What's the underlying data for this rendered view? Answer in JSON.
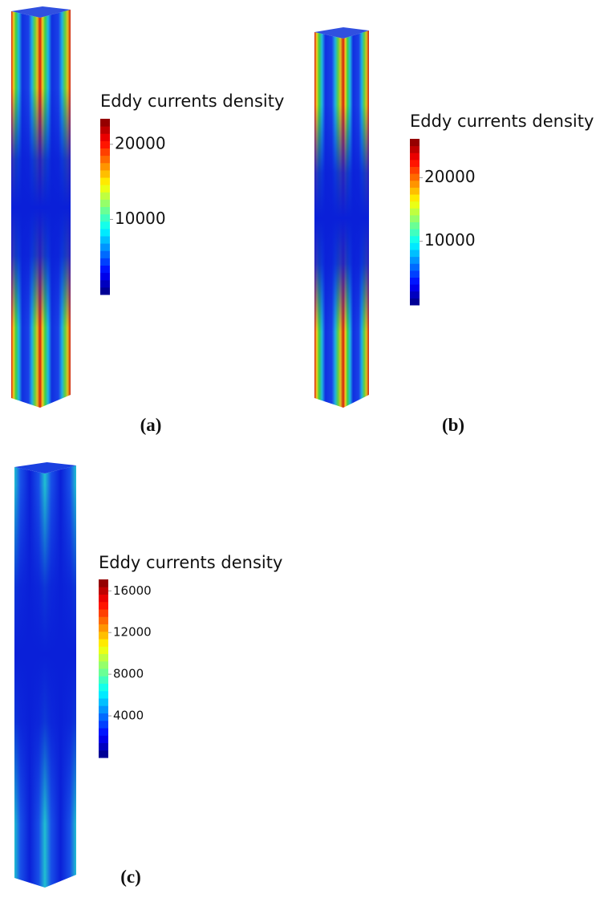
{
  "panels": [
    {
      "label": "(a)",
      "legend": {
        "title": "Eddy currents density",
        "range": [
          0,
          23400
        ],
        "ticks": [
          10000,
          20000
        ]
      }
    },
    {
      "label": "(b)",
      "legend": {
        "title": "Eddy currents density",
        "range": [
          0,
          26100
        ],
        "ticks": [
          10000,
          20000
        ]
      }
    },
    {
      "label": "(c)",
      "legend": {
        "title": "Eddy currents density",
        "range": [
          0,
          17100
        ],
        "ticks": [
          4000,
          8000,
          12000,
          16000
        ]
      }
    }
  ]
}
